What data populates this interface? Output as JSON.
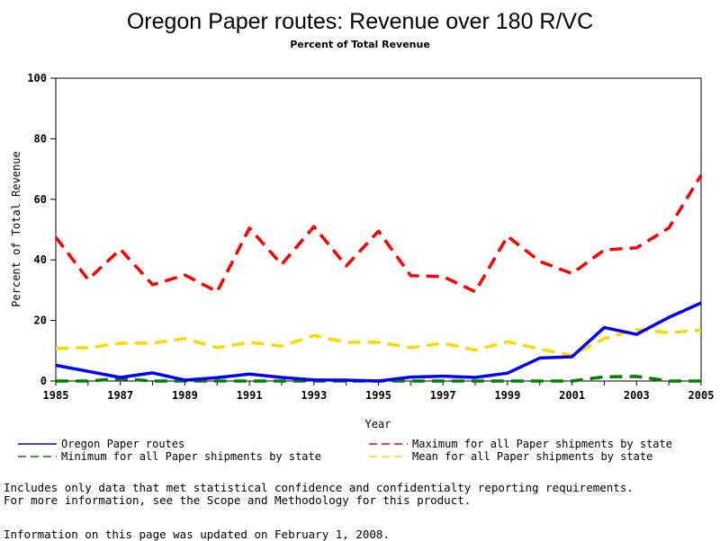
{
  "chart_data": {
    "type": "line",
    "title": "Oregon Paper routes: Revenue over 180 R/VC",
    "subtitle": "Percent of Total Revenue",
    "xlabel": "Year",
    "ylabel": "Percent of Total Revenue",
    "xlim": [
      1985,
      2005
    ],
    "ylim": [
      0,
      100
    ],
    "x_ticks": [
      "1985",
      "1987",
      "1989",
      "1991",
      "1993",
      "1995",
      "1997",
      "1999",
      "2001",
      "2003",
      "2005"
    ],
    "y_ticks": [
      "0",
      "20",
      "40",
      "60",
      "80",
      "100"
    ],
    "x": [
      1985,
      1986,
      1987,
      1988,
      1989,
      1990,
      1991,
      1992,
      1993,
      1994,
      1995,
      1996,
      1997,
      1998,
      1999,
      2000,
      2001,
      2002,
      2003,
      2004,
      2005
    ],
    "series": [
      {
        "name": "Oregon Paper routes",
        "color": "#0000ff",
        "dash": "solid",
        "values": [
          5.2,
          3.2,
          1.2,
          2.7,
          0.3,
          1.1,
          2.3,
          1.2,
          0.4,
          0.3,
          0.0,
          1.3,
          1.6,
          1.2,
          2.6,
          7.6,
          8.0,
          17.7,
          15.4,
          21.0,
          25.8
        ]
      },
      {
        "name": "Maximum for all Paper shipments by state",
        "color": "#ff0000",
        "dash": "dashed",
        "values": [
          47.5,
          33.5,
          43.5,
          31.8,
          35.0,
          29.5,
          50.5,
          38.5,
          51.0,
          38.0,
          49.5,
          34.8,
          34.5,
          29.5,
          47.8,
          39.5,
          35.5,
          43.3,
          44.0,
          50.5,
          68.0
        ]
      },
      {
        "name": "Minimum for all Paper shipments by state",
        "color": "#008000",
        "dash": "dashed",
        "values": [
          0.0,
          0.0,
          0.8,
          0.0,
          0.0,
          0.0,
          0.0,
          0.0,
          0.0,
          0.0,
          0.0,
          0.0,
          0.0,
          0.0,
          0.0,
          0.0,
          0.0,
          1.4,
          1.5,
          0.0,
          0.0
        ]
      },
      {
        "name": "Mean for all Paper shipments by state",
        "color": "#ffd700",
        "dash": "dashed",
        "values": [
          10.8,
          11.0,
          12.5,
          12.5,
          14.0,
          11.0,
          12.8,
          11.5,
          15.0,
          12.8,
          12.8,
          11.0,
          12.5,
          10.2,
          13.0,
          10.5,
          8.5,
          14.0,
          17.0,
          16.0,
          16.8
        ]
      }
    ],
    "legend_position": "bottom",
    "grid": false
  },
  "notes": {
    "line1": "Includes only data that met statistical confidence and confidentialty reporting requirements.",
    "line2": "For more information, see the Scope and Methodology for this product.",
    "updated": "Information on this page was updated on February 1, 2008."
  }
}
